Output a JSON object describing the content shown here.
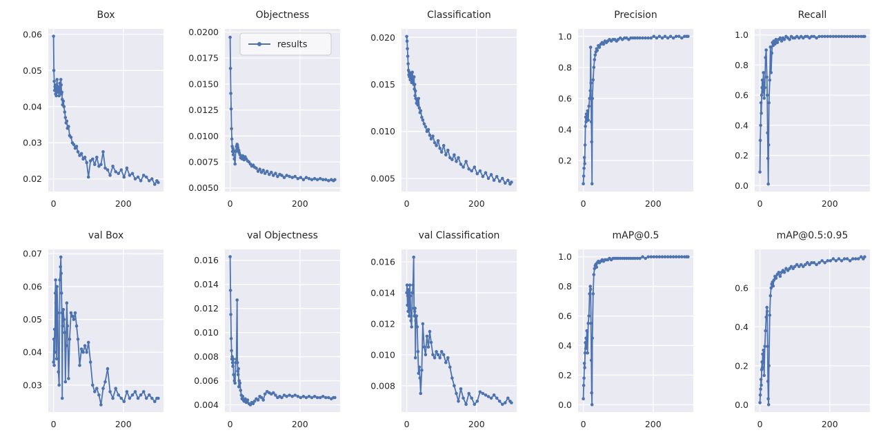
{
  "figure": {
    "background": "#ffffff",
    "axes_background": "#eaeaf2",
    "grid_color": "#ffffff",
    "line_color": "#4c72b0",
    "text_color": "#262626",
    "title_fontsize": 14,
    "tick_fontsize": 12.5
  },
  "chart_data": {
    "type": "line",
    "legend_label": "results",
    "legend_position": "upper right of Objectness subplot",
    "grid": true,
    "xlim": [
      -15,
      315
    ],
    "xticks": [
      0,
      200
    ],
    "xtick_labels": [
      "0",
      "200"
    ],
    "x": [
      0,
      1,
      2,
      3,
      4,
      5,
      6,
      7,
      8,
      9,
      10,
      12,
      14,
      16,
      18,
      20,
      21,
      22,
      23,
      24,
      25,
      26,
      28,
      30,
      32,
      34,
      36,
      38,
      40,
      43,
      46,
      50,
      54,
      58,
      62,
      66,
      70,
      75,
      80,
      85,
      90,
      95,
      100,
      106,
      112,
      118,
      124,
      130,
      136,
      142,
      148,
      155,
      162,
      170,
      178,
      186,
      194,
      202,
      210,
      218,
      226,
      234,
      242,
      250,
      258,
      266,
      274,
      282,
      290,
      296,
      300
    ],
    "subplots": [
      {
        "title": "Box",
        "legend": false,
        "ylim": [
          0.0165,
          0.0615
        ],
        "yticks": [
          0.02,
          0.03,
          0.04,
          0.05,
          0.06
        ],
        "ytick_labels": [
          "0.02",
          "0.03",
          "0.04",
          "0.05",
          "0.06"
        ],
        "y": [
          0.0595,
          0.05,
          0.047,
          0.0445,
          0.0455,
          0.046,
          0.0435,
          0.0445,
          0.043,
          0.046,
          0.0475,
          0.044,
          0.0455,
          0.043,
          0.0465,
          0.044,
          0.0475,
          0.046,
          0.0435,
          0.044,
          0.042,
          0.0405,
          0.0415,
          0.04,
          0.0385,
          0.037,
          0.0355,
          0.036,
          0.034,
          0.0345,
          0.032,
          0.0315,
          0.03,
          0.0295,
          0.0285,
          0.029,
          0.0275,
          0.0265,
          0.027,
          0.0255,
          0.026,
          0.0245,
          0.0205,
          0.025,
          0.0255,
          0.024,
          0.026,
          0.0235,
          0.024,
          0.0275,
          0.023,
          0.0225,
          0.021,
          0.0235,
          0.022,
          0.0215,
          0.0225,
          0.0205,
          0.023,
          0.021,
          0.0215,
          0.02,
          0.0205,
          0.0195,
          0.021,
          0.0205,
          0.0195,
          0.02,
          0.0185,
          0.0195,
          0.019
        ]
      },
      {
        "title": "Objectness",
        "legend": true,
        "ylim": [
          0.00465,
          0.0203
        ],
        "yticks": [
          0.005,
          0.0075,
          0.01,
          0.0125,
          0.015,
          0.0175,
          0.02
        ],
        "ytick_labels": [
          "0.0050",
          "0.0075",
          "0.0100",
          "0.0125",
          "0.0150",
          "0.0175",
          "0.0200"
        ],
        "y": [
          0.0195,
          0.0165,
          0.0141,
          0.0126,
          0.0107,
          0.0097,
          0.009,
          0.0085,
          0.0088,
          0.0082,
          0.0086,
          0.0078,
          0.0073,
          0.0085,
          0.009,
          0.0092,
          0.0091,
          0.0089,
          0.0087,
          0.0085,
          0.0086,
          0.0084,
          0.0082,
          0.0079,
          0.008,
          0.0078,
          0.0081,
          0.0079,
          0.0077,
          0.008,
          0.0078,
          0.0076,
          0.0075,
          0.0073,
          0.0071,
          0.0072,
          0.007,
          0.0069,
          0.0066,
          0.0068,
          0.0065,
          0.0067,
          0.0064,
          0.0066,
          0.0063,
          0.0065,
          0.0062,
          0.0064,
          0.0061,
          0.0063,
          0.0062,
          0.006,
          0.0062,
          0.0061,
          0.006,
          0.0061,
          0.0059,
          0.006,
          0.0058,
          0.006,
          0.0059,
          0.0058,
          0.0059,
          0.0058,
          0.0059,
          0.0058,
          0.0058,
          0.0057,
          0.0058,
          0.0057,
          0.0058
        ]
      },
      {
        "title": "Classification",
        "legend": false,
        "ylim": [
          0.0036,
          0.0209
        ],
        "yticks": [
          0.005,
          0.01,
          0.015,
          0.02
        ],
        "ytick_labels": [
          "0.005",
          "0.010",
          "0.015",
          "0.020"
        ],
        "y": [
          0.0201,
          0.0196,
          0.0188,
          0.018,
          0.0172,
          0.0165,
          0.016,
          0.0163,
          0.0158,
          0.0162,
          0.0155,
          0.016,
          0.0152,
          0.0163,
          0.0155,
          0.015,
          0.0158,
          0.0145,
          0.015,
          0.0138,
          0.0143,
          0.0135,
          0.013,
          0.0133,
          0.0128,
          0.0135,
          0.0125,
          0.012,
          0.0122,
          0.0115,
          0.0112,
          0.0108,
          0.0105,
          0.01,
          0.0102,
          0.0096,
          0.0092,
          0.0095,
          0.0088,
          0.0085,
          0.009,
          0.0082,
          0.0078,
          0.0085,
          0.0075,
          0.008,
          0.0072,
          0.007,
          0.0075,
          0.0068,
          0.0072,
          0.0065,
          0.0062,
          0.0068,
          0.006,
          0.0058,
          0.0062,
          0.0055,
          0.0058,
          0.0052,
          0.0056,
          0.005,
          0.0054,
          0.0048,
          0.0052,
          0.0047,
          0.005,
          0.0045,
          0.0048,
          0.0044,
          0.0046
        ]
      },
      {
        "title": "Precision",
        "legend": false,
        "ylim": [
          0.0,
          1.048
        ],
        "yticks": [
          0.2,
          0.4,
          0.6,
          0.8,
          1.0
        ],
        "ytick_labels": [
          "0.2",
          "0.4",
          "0.6",
          "0.8",
          "1.0"
        ],
        "y": [
          0.05,
          0.1,
          0.15,
          0.22,
          0.18,
          0.3,
          0.42,
          0.48,
          0.45,
          0.5,
          0.47,
          0.52,
          0.46,
          0.55,
          0.6,
          0.65,
          0.93,
          0.7,
          0.45,
          0.32,
          0.05,
          0.6,
          0.72,
          0.8,
          0.85,
          0.88,
          0.9,
          0.92,
          0.91,
          0.94,
          0.93,
          0.95,
          0.96,
          0.95,
          0.97,
          0.96,
          0.97,
          0.98,
          0.97,
          0.98,
          0.98,
          0.97,
          0.98,
          0.99,
          0.98,
          0.99,
          0.99,
          0.98,
          0.99,
          0.99,
          0.99,
          0.99,
          0.99,
          0.99,
          0.99,
          0.99,
          0.99,
          1.0,
          0.99,
          1.0,
          0.99,
          1.0,
          0.99,
          1.0,
          0.99,
          1.0,
          1.0,
          0.99,
          1.0,
          1.0,
          1.0
        ]
      },
      {
        "title": "Recall",
        "legend": false,
        "ylim": [
          -0.04,
          1.04
        ],
        "yticks": [
          0.0,
          0.2,
          0.4,
          0.6,
          0.8,
          1.0
        ],
        "ytick_labels": [
          "0.0",
          "0.2",
          "0.4",
          "0.6",
          "0.8",
          "1.0"
        ],
        "y": [
          0.09,
          0.3,
          0.4,
          0.55,
          0.48,
          0.6,
          0.65,
          0.7,
          0.62,
          0.68,
          0.75,
          0.58,
          0.65,
          0.85,
          0.9,
          0.72,
          0.6,
          0.35,
          0.18,
          0.01,
          0.27,
          0.55,
          0.7,
          0.92,
          0.75,
          0.88,
          0.95,
          0.93,
          0.96,
          0.94,
          0.97,
          0.95,
          0.97,
          0.98,
          0.96,
          0.98,
          0.97,
          0.99,
          0.98,
          0.97,
          0.99,
          0.98,
          0.98,
          0.99,
          0.98,
          0.99,
          0.98,
          0.99,
          0.99,
          0.98,
          0.99,
          0.99,
          0.98,
          0.99,
          0.99,
          0.99,
          0.99,
          0.99,
          0.99,
          0.99,
          0.99,
          0.99,
          0.99,
          0.99,
          0.99,
          0.99,
          0.99,
          0.99,
          0.99,
          0.99,
          0.99
        ]
      },
      {
        "title": "val Box",
        "legend": false,
        "ylim": [
          0.0218,
          0.0713
        ],
        "yticks": [
          0.03,
          0.04,
          0.05,
          0.06,
          0.07
        ],
        "ytick_labels": [
          "0.03",
          "0.04",
          "0.05",
          "0.06",
          "0.07"
        ],
        "y": [
          0.037,
          0.044,
          0.036,
          0.047,
          0.04,
          0.058,
          0.062,
          0.055,
          0.045,
          0.038,
          0.06,
          0.052,
          0.034,
          0.03,
          0.062,
          0.066,
          0.069,
          0.064,
          0.058,
          0.052,
          0.026,
          0.048,
          0.053,
          0.05,
          0.046,
          0.031,
          0.042,
          0.055,
          0.048,
          0.032,
          0.044,
          0.052,
          0.051,
          0.05,
          0.052,
          0.048,
          0.044,
          0.036,
          0.041,
          0.04,
          0.042,
          0.04,
          0.043,
          0.037,
          0.03,
          0.028,
          0.029,
          0.027,
          0.024,
          0.029,
          0.031,
          0.035,
          0.028,
          0.026,
          0.029,
          0.027,
          0.026,
          0.025,
          0.028,
          0.026,
          0.027,
          0.028,
          0.026,
          0.027,
          0.028,
          0.026,
          0.027,
          0.026,
          0.025,
          0.026,
          0.026
        ]
      },
      {
        "title": "val Objectness",
        "legend": false,
        "ylim": [
          0.0034,
          0.0169
        ],
        "yticks": [
          0.004,
          0.006,
          0.008,
          0.01,
          0.012,
          0.014,
          0.016
        ],
        "ytick_labels": [
          "0.004",
          "0.006",
          "0.008",
          "0.010",
          "0.012",
          "0.014",
          "0.016"
        ],
        "y": [
          0.0163,
          0.0135,
          0.0115,
          0.0095,
          0.0085,
          0.0078,
          0.008,
          0.0075,
          0.0072,
          0.0078,
          0.0065,
          0.006,
          0.0058,
          0.0075,
          0.0078,
          0.0127,
          0.0075,
          0.0068,
          0.0065,
          0.007,
          0.0055,
          0.006,
          0.0058,
          0.0052,
          0.0048,
          0.0045,
          0.0047,
          0.0044,
          0.0043,
          0.0045,
          0.0042,
          0.0044,
          0.0041,
          0.004,
          0.0042,
          0.0041,
          0.0043,
          0.0045,
          0.0044,
          0.0047,
          0.0046,
          0.0044,
          0.0049,
          0.0051,
          0.005,
          0.0049,
          0.005,
          0.0048,
          0.0046,
          0.0047,
          0.0046,
          0.0048,
          0.0047,
          0.0048,
          0.0047,
          0.0048,
          0.0047,
          0.0046,
          0.0047,
          0.0046,
          0.0047,
          0.0046,
          0.0047,
          0.0046,
          0.0046,
          0.0047,
          0.0046,
          0.0046,
          0.0045,
          0.0046,
          0.0046
        ]
      },
      {
        "title": "val Classification",
        "legend": false,
        "ylim": [
          0.0063,
          0.0168
        ],
        "yticks": [
          0.008,
          0.01,
          0.012,
          0.014,
          0.016
        ],
        "ytick_labels": [
          "0.008",
          "0.010",
          "0.012",
          "0.014",
          "0.016"
        ],
        "y": [
          0.014,
          0.0145,
          0.0132,
          0.0138,
          0.0128,
          0.0142,
          0.0135,
          0.0125,
          0.013,
          0.0145,
          0.0138,
          0.0122,
          0.0118,
          0.014,
          0.0145,
          0.0163,
          0.013,
          0.0125,
          0.0128,
          0.013,
          0.0098,
          0.0122,
          0.0125,
          0.0118,
          0.0102,
          0.0088,
          0.0092,
          0.0085,
          0.0075,
          0.009,
          0.012,
          0.0105,
          0.01,
          0.0112,
          0.0105,
          0.0115,
          0.0108,
          0.01,
          0.0098,
          0.0102,
          0.01,
          0.0098,
          0.0102,
          0.01,
          0.0095,
          0.0098,
          0.0092,
          0.0085,
          0.008,
          0.0075,
          0.007,
          0.0078,
          0.0072,
          0.0068,
          0.0075,
          0.0072,
          0.0068,
          0.007,
          0.0076,
          0.0075,
          0.0074,
          0.0073,
          0.0072,
          0.0074,
          0.0072,
          0.007,
          0.0068,
          0.0069,
          0.0072,
          0.007,
          0.0069
        ]
      },
      {
        "title": "mAP@0.5",
        "legend": false,
        "ylim": [
          -0.05,
          1.05
        ],
        "yticks": [
          0.0,
          0.2,
          0.4,
          0.6,
          0.8,
          1.0
        ],
        "ytick_labels": [
          "0.0",
          "0.2",
          "0.4",
          "0.6",
          "0.8",
          "1.0"
        ],
        "y": [
          0.04,
          0.13,
          0.18,
          0.28,
          0.25,
          0.35,
          0.42,
          0.38,
          0.45,
          0.4,
          0.5,
          0.35,
          0.55,
          0.6,
          0.75,
          0.8,
          0.78,
          0.55,
          0.3,
          0.08,
          0.0,
          0.45,
          0.75,
          0.88,
          0.92,
          0.94,
          0.95,
          0.93,
          0.96,
          0.97,
          0.96,
          0.97,
          0.98,
          0.97,
          0.98,
          0.98,
          0.98,
          0.99,
          0.98,
          0.99,
          0.99,
          0.99,
          0.99,
          0.99,
          0.99,
          0.99,
          0.99,
          0.99,
          0.99,
          0.99,
          0.99,
          0.99,
          0.99,
          1.0,
          0.99,
          1.0,
          1.0,
          1.0,
          1.0,
          1.0,
          1.0,
          1.0,
          1.0,
          1.0,
          1.0,
          1.0,
          1.0,
          1.0,
          1.0,
          1.0,
          1.0
        ]
      },
      {
        "title": "mAP@0.5:0.95",
        "legend": false,
        "ylim": [
          -0.038,
          0.798
        ],
        "yticks": [
          0.0,
          0.2,
          0.4,
          0.6
        ],
        "ytick_labels": [
          "0.0",
          "0.2",
          "0.4",
          "0.6"
        ],
        "y": [
          0.01,
          0.05,
          0.08,
          0.13,
          0.1,
          0.18,
          0.22,
          0.19,
          0.26,
          0.22,
          0.28,
          0.15,
          0.3,
          0.38,
          0.45,
          0.5,
          0.48,
          0.3,
          0.12,
          0.03,
          0.0,
          0.2,
          0.46,
          0.56,
          0.6,
          0.62,
          0.63,
          0.61,
          0.64,
          0.66,
          0.65,
          0.67,
          0.68,
          0.66,
          0.68,
          0.69,
          0.68,
          0.7,
          0.69,
          0.7,
          0.71,
          0.7,
          0.71,
          0.72,
          0.71,
          0.72,
          0.71,
          0.72,
          0.73,
          0.72,
          0.73,
          0.73,
          0.72,
          0.73,
          0.74,
          0.73,
          0.74,
          0.74,
          0.75,
          0.74,
          0.75,
          0.74,
          0.75,
          0.75,
          0.74,
          0.75,
          0.75,
          0.75,
          0.76,
          0.75,
          0.76
        ]
      }
    ]
  }
}
